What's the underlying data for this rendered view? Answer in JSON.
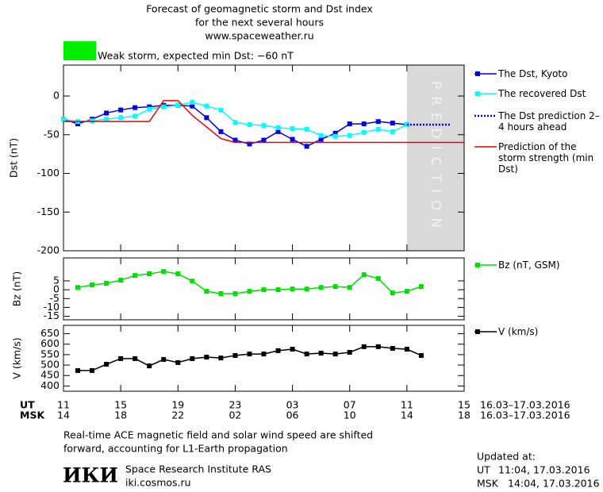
{
  "header": {
    "title_lines": [
      "Forecast of geomagnetic storm and Dst index",
      "for the next several hours",
      "www.spaceweather.ru"
    ],
    "storm_label": "Weak storm, expected min Dst: −60 nT",
    "storm_color": "#00ee00"
  },
  "chart_data": [
    {
      "type": "line",
      "ylabel": "Dst (nT)",
      "xlim": [
        0,
        28
      ],
      "ylim": [
        -200,
        40
      ],
      "yticks": [
        -200,
        -150,
        -100,
        -50,
        0
      ],
      "band": {
        "x": [
          24,
          28
        ],
        "label": "PREDICTION",
        "color": "#d9d9d9"
      },
      "series": [
        {
          "name": "The Dst, Kyoto",
          "color": "#0000dd",
          "marker": "square",
          "x": [
            0,
            1,
            2,
            3,
            4,
            5,
            6,
            7,
            8,
            9,
            10,
            11,
            12,
            13,
            14,
            15,
            16,
            17,
            18,
            19,
            20,
            21,
            22,
            23,
            24
          ],
          "values": [
            -30,
            -36,
            -30,
            -22,
            -18,
            -15,
            -14,
            -12,
            -12,
            -13,
            -28,
            -46,
            -57,
            -62,
            -57,
            -46,
            -56,
            -65,
            -56,
            -48,
            -36,
            -36,
            -33,
            -35,
            -37
          ]
        },
        {
          "name": "The recovered Dst",
          "color": "#00ffff",
          "marker": "square",
          "x": [
            0,
            1,
            2,
            3,
            4,
            5,
            6,
            7,
            8,
            9,
            10,
            11,
            12,
            13,
            14,
            15,
            16,
            17,
            18,
            19,
            20,
            21,
            22,
            23,
            24
          ],
          "values": [
            -30,
            -33,
            -32,
            -30,
            -28,
            -26,
            -17,
            -14,
            -12,
            -8,
            -13,
            -18,
            -34,
            -37,
            -38,
            -41,
            -42,
            -43,
            -51,
            -52,
            -51,
            -47,
            -43,
            -46,
            -37
          ]
        },
        {
          "name": "The Dst prediction 2–4 hours ahead",
          "color": "#0000dd",
          "dash": true,
          "x": [
            24,
            27
          ],
          "values": [
            -37,
            -37
          ]
        },
        {
          "name": "Prediction of the storm strength (min Dst)",
          "color": "#ee0000",
          "x": [
            0,
            6,
            7,
            8,
            9,
            11,
            12,
            28
          ],
          "values": [
            -33,
            -33,
            -6,
            -6,
            -25,
            -55,
            -60,
            -60
          ]
        }
      ]
    },
    {
      "type": "line",
      "ylabel": "Bz (nT)",
      "xlim": [
        0,
        28
      ],
      "ylim": [
        -17,
        18
      ],
      "yticks": [
        -15,
        -10,
        -5,
        0,
        5
      ],
      "series": [
        {
          "name": "Bz (nT, GSM)",
          "color": "#00dd00",
          "marker": "square",
          "x": [
            1,
            2,
            3,
            4,
            5,
            6,
            7,
            8,
            9,
            10,
            11,
            12,
            13,
            14,
            15,
            16,
            17,
            18,
            19,
            20,
            21,
            22,
            23,
            24,
            25
          ],
          "values": [
            1.3,
            2.7,
            3.6,
            5.4,
            8.1,
            9.0,
            10.3,
            9.0,
            4.9,
            -0.9,
            -2.2,
            -2.2,
            -0.9,
            0,
            0,
            0.4,
            0.4,
            1.3,
            1.8,
            1.3,
            8.5,
            6.3,
            -1.8,
            -0.9,
            1.8
          ]
        }
      ]
    },
    {
      "type": "line",
      "ylabel": "V (km/s)",
      "xlim": [
        0,
        28
      ],
      "ylim": [
        375,
        690
      ],
      "yticks": [
        400,
        450,
        500,
        550,
        600,
        650
      ],
      "series": [
        {
          "name": "V (km/s)",
          "color": "#000000",
          "marker": "square",
          "x": [
            1,
            2,
            3,
            4,
            5,
            6,
            7,
            8,
            9,
            10,
            11,
            12,
            13,
            14,
            15,
            16,
            17,
            18,
            19,
            20,
            21,
            22,
            23,
            24,
            25
          ],
          "values": [
            474,
            474,
            504,
            531,
            531,
            496,
            527,
            512,
            531,
            538,
            534,
            546,
            553,
            553,
            569,
            576,
            553,
            557,
            553,
            561,
            588,
            588,
            580,
            576,
            546
          ]
        }
      ]
    }
  ],
  "time_axis": {
    "ut_label": "UT",
    "msk_label": "MSK",
    "date_range": "16.03–17.03.2016",
    "ut_ticks": [
      {
        "value": 0,
        "label": "11"
      },
      {
        "value": 4,
        "label": "15"
      },
      {
        "value": 8,
        "label": "19"
      },
      {
        "value": 12,
        "label": "23"
      },
      {
        "value": 16,
        "label": "03"
      },
      {
        "value": 20,
        "label": "07"
      },
      {
        "value": 24,
        "label": "11"
      },
      {
        "value": 28,
        "label": "15"
      }
    ],
    "msk_ticks": [
      {
        "value": 0,
        "label": "14"
      },
      {
        "value": 4,
        "label": "18"
      },
      {
        "value": 8,
        "label": "22"
      },
      {
        "value": 12,
        "label": "02"
      },
      {
        "value": 16,
        "label": "06"
      },
      {
        "value": 20,
        "label": "10"
      },
      {
        "value": 24,
        "label": "14"
      },
      {
        "value": 28,
        "label": "18"
      }
    ]
  },
  "footer": {
    "note_lines": [
      "Real-time ACE magnetic field and solar wind speed are shifted",
      "forward, accounting for L1-Earth propagation"
    ],
    "logo": "ИКИ",
    "institute": "Space Research Institute RAS",
    "site": "iki.cosmos.ru",
    "updated_label": "Updated at:",
    "ut_label": "UT",
    "ut_time": "11:04, 17.03.2016",
    "msk_label": "MSK",
    "msk_time": "14:04, 17.03.2016"
  }
}
